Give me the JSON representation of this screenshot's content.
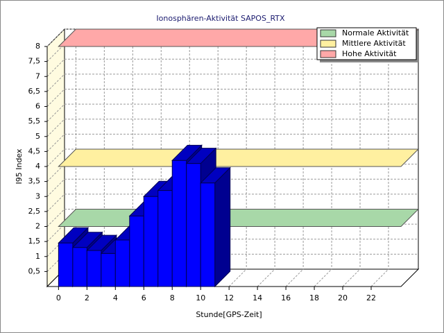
{
  "chart_data": {
    "type": "bar3d",
    "title": "Ionosphären-Aktivität SAPOS_RTX",
    "xlabel": "Stunde[GPS-Zeit]",
    "ylabel": "I95 Index",
    "x": [
      0,
      1,
      2,
      3,
      4,
      5,
      6,
      7,
      8,
      9,
      10
    ],
    "values": [
      1.45,
      1.3,
      1.2,
      1.1,
      1.55,
      2.35,
      3.0,
      3.2,
      4.2,
      4.1,
      3.45
    ],
    "color": "#0000ff",
    "xlim": [
      -0.8,
      24.1
    ],
    "xticks": [
      0,
      2,
      4,
      6,
      8,
      10,
      12,
      14,
      16,
      18,
      20,
      22
    ],
    "ylim": [
      0,
      8
    ],
    "yticks": [
      {
        "value": 0.5,
        "label": "0,5"
      },
      1,
      {
        "value": 1.5,
        "label": "1,5"
      },
      2,
      {
        "value": 2.5,
        "label": "2,5"
      },
      3,
      {
        "value": 3.5,
        "label": "3,5"
      },
      4,
      {
        "value": 4.5,
        "label": "4,5"
      },
      5,
      {
        "value": 5.5,
        "label": "5,5"
      },
      6,
      {
        "value": 6.5,
        "label": "6,5"
      },
      7,
      {
        "value": 7.5,
        "label": "7,5"
      },
      8
    ],
    "grid": true,
    "legend": "upper right",
    "thresholds": [
      {
        "name": "Normale Aktivität",
        "color": "#a8d8a8",
        "value": 2
      },
      {
        "name": "Mittlere Aktivität",
        "color": "#fff0a0",
        "value": 4
      },
      {
        "name": "Hohe Aktivität",
        "color": "#ffa8a8",
        "value": 8
      }
    ]
  }
}
